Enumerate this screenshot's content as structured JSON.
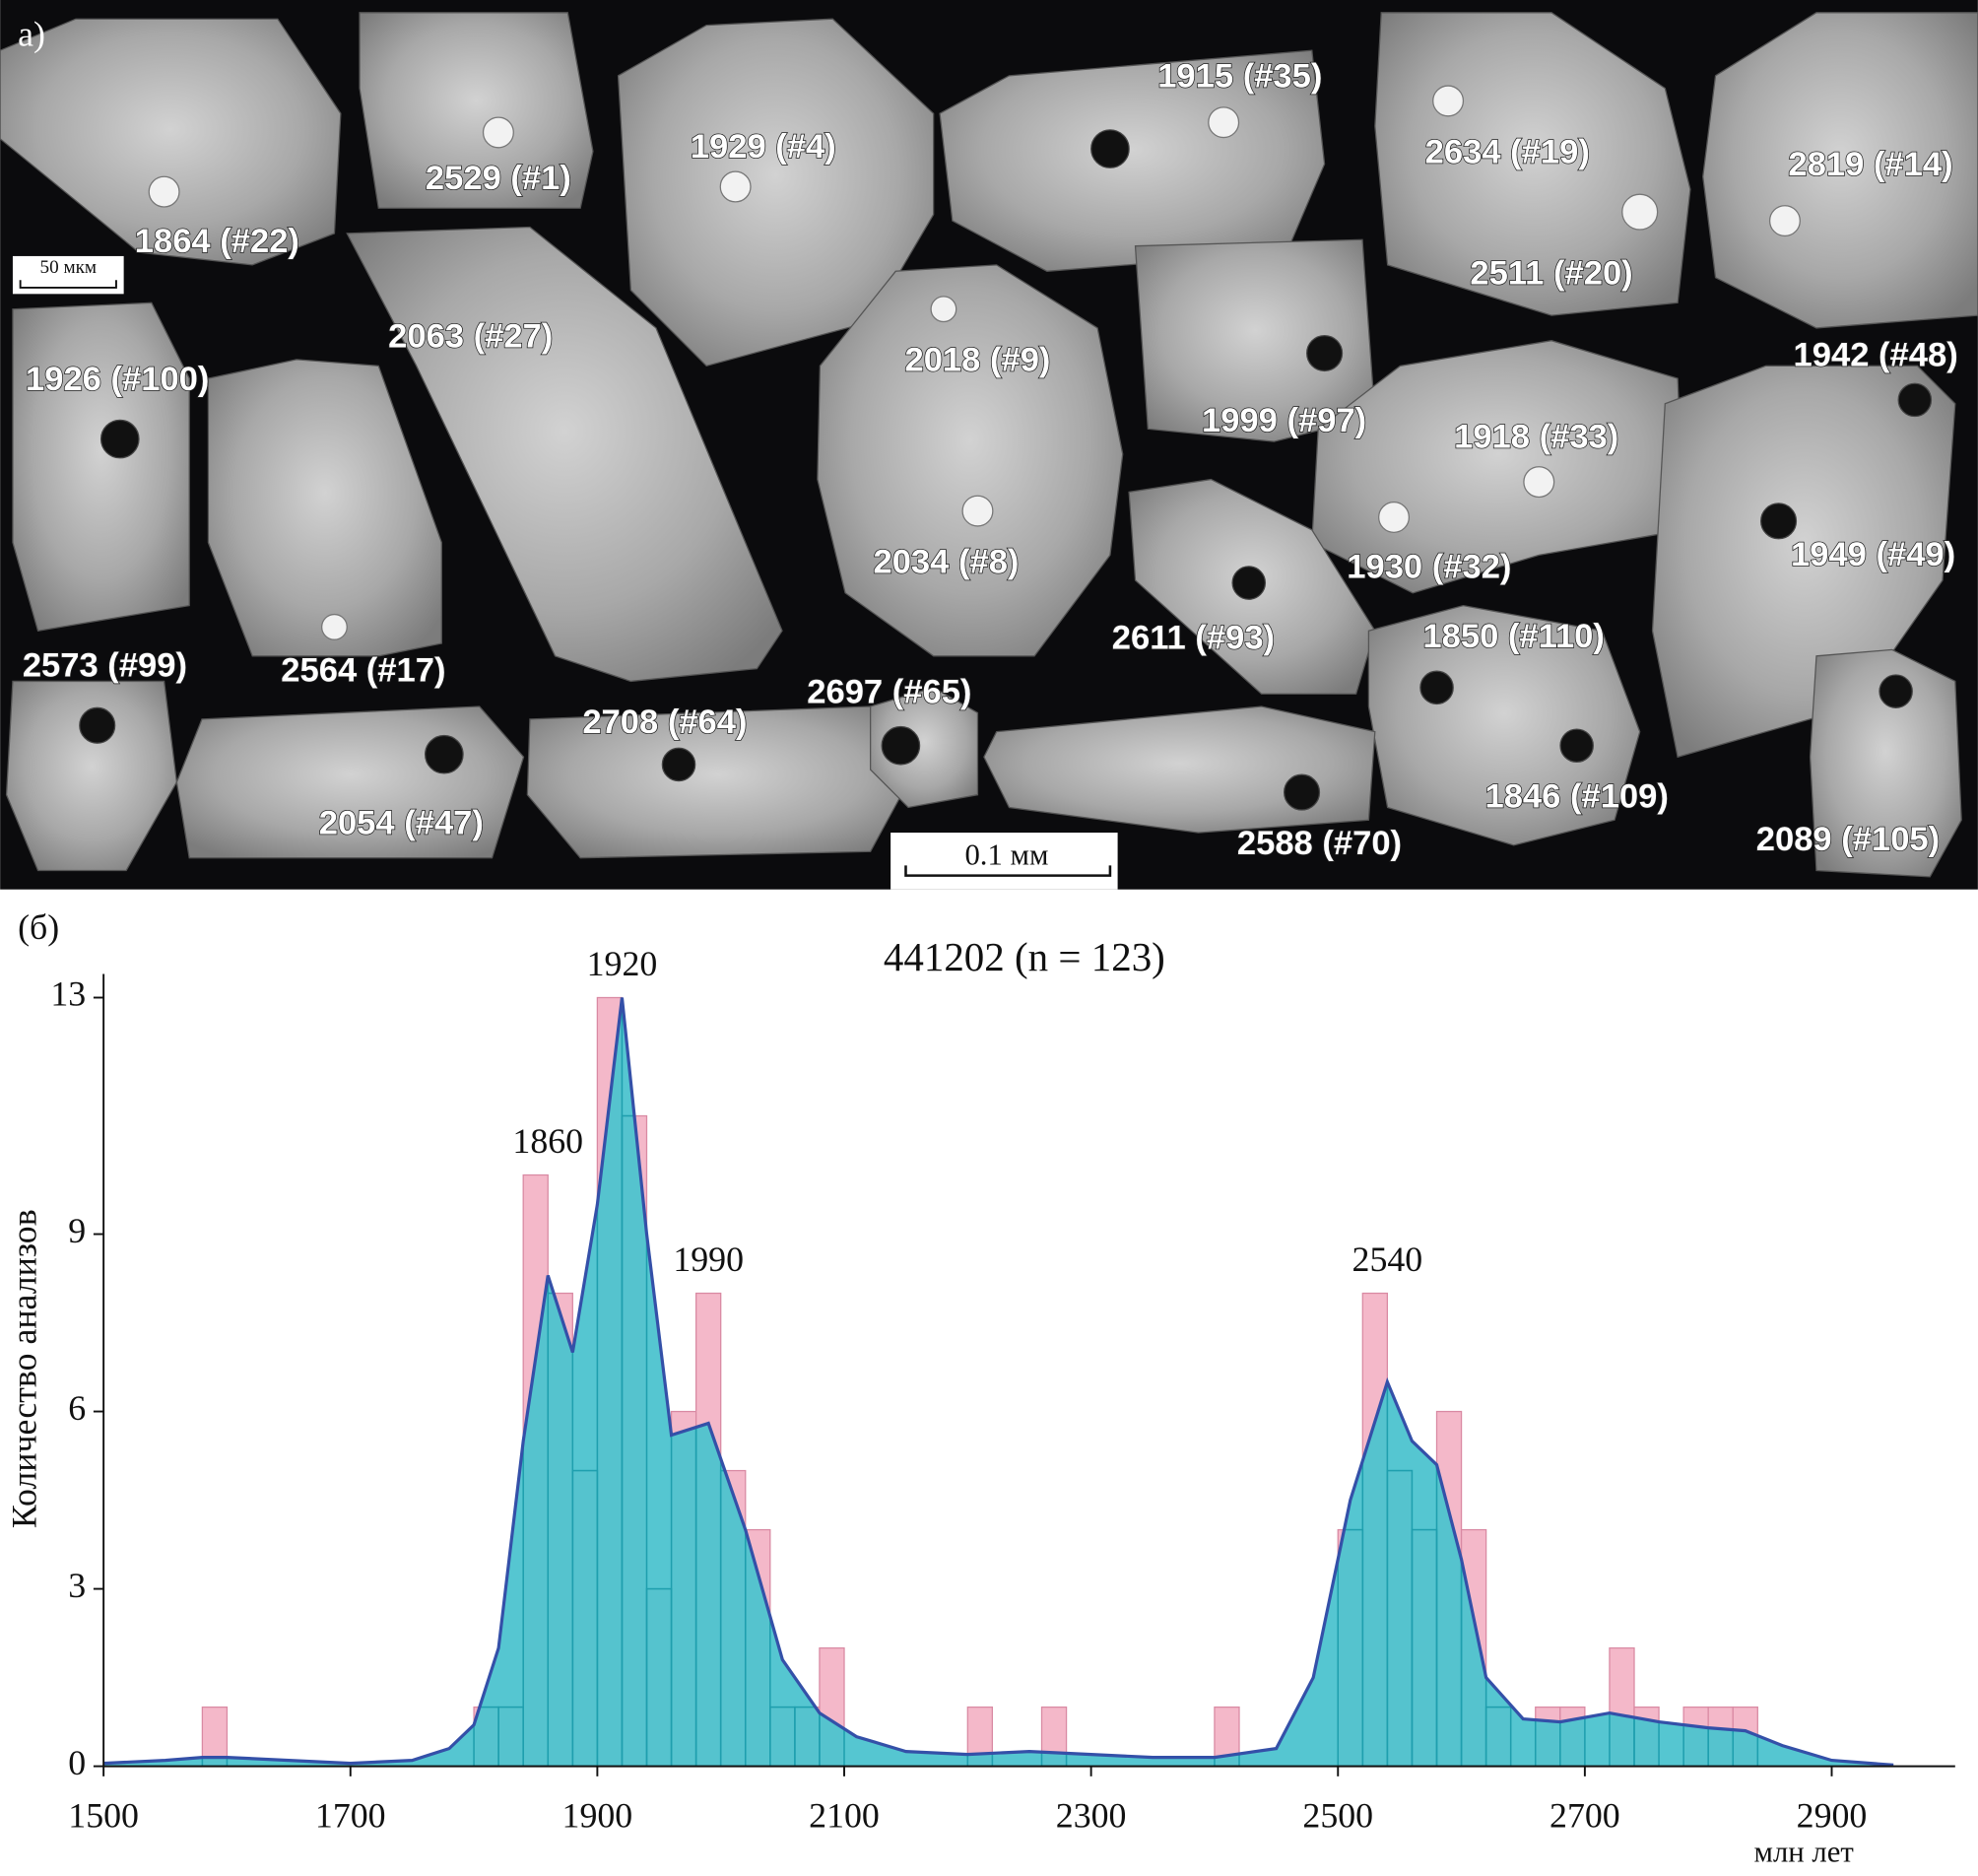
{
  "image_panel": {
    "label": "а)",
    "scale_bars": [
      "50 мкм",
      "0.1 мм"
    ],
    "grain_labels": [
      "2529 (#1)",
      "1864 (#22)",
      "1929 (#4)",
      "1915 (#35)",
      "2634 (#19)",
      "2819 (#14)",
      "2511 (#20)",
      "2063 (#27)",
      "1926 (#100)",
      "2018 (#9)",
      "1999 (#97)",
      "1942 (#48)",
      "1918 (#33)",
      "2034 (#8)",
      "1930 (#32)",
      "1949 (#49)",
      "2611 (#93)",
      "1850 (#110)",
      "2573 (#99)",
      "2564 (#17)",
      "2697 (#65)",
      "2708 (#64)",
      "1846 (#109)",
      "2054 (#47)",
      "2588 (#70)",
      "2089 (#105)"
    ]
  },
  "chart_data": {
    "type": "histogram",
    "panel_label": "(б)",
    "title": "441202 (n = 123)",
    "y_label": "Количество анализов",
    "x_label": "млн лет",
    "bins": [
      1580,
      1600,
      1620,
      1640,
      1660,
      1680,
      1700,
      1720,
      1740,
      1760,
      1780,
      1800,
      1820,
      1840,
      1860,
      1880,
      1900,
      1920,
      1940,
      1960,
      1980,
      2000,
      2020,
      2040,
      2060,
      2080,
      2100,
      2120,
      2140,
      2160,
      2180,
      2200,
      2220,
      2240,
      2260,
      2280,
      2300,
      2320,
      2340,
      2360,
      2380,
      2400,
      2420,
      2440,
      2460,
      2480,
      2500,
      2520,
      2540,
      2560,
      2580,
      2600,
      2620,
      2640,
      2660,
      2680,
      2700,
      2720,
      2740,
      2760,
      2780,
      2800,
      2820,
      2840
    ],
    "counts": [
      1,
      0,
      0,
      0,
      0,
      0,
      0,
      0,
      0,
      0,
      0,
      1,
      1,
      10,
      8,
      5,
      13,
      11,
      3,
      6,
      8,
      5,
      4,
      1,
      1,
      2,
      0,
      0,
      0,
      0,
      0,
      1,
      0,
      0,
      1,
      0,
      0,
      0,
      0,
      0,
      0,
      1,
      0,
      0,
      0,
      0,
      4,
      8,
      5,
      4,
      6,
      4,
      1,
      0,
      1,
      1,
      0,
      2,
      1,
      0,
      1,
      1,
      1
    ],
    "color": "#f4b8c9",
    "density": {
      "x": [
        1500,
        1550,
        1580,
        1600,
        1650,
        1700,
        1750,
        1780,
        1800,
        1820,
        1840,
        1860,
        1880,
        1900,
        1920,
        1940,
        1960,
        1990,
        2020,
        2050,
        2080,
        2110,
        2150,
        2200,
        2250,
        2300,
        2350,
        2400,
        2450,
        2480,
        2510,
        2540,
        2560,
        2580,
        2600,
        2620,
        2650,
        2680,
        2720,
        2760,
        2800,
        2830,
        2860,
        2900,
        2950
      ],
      "values": [
        0.05,
        0.1,
        0.15,
        0.15,
        0.1,
        0.05,
        0.1,
        0.3,
        0.7,
        2.0,
        5.5,
        8.3,
        7.0,
        9.5,
        13.0,
        9.0,
        5.6,
        5.8,
        4.0,
        1.8,
        0.9,
        0.5,
        0.25,
        0.2,
        0.25,
        0.2,
        0.15,
        0.15,
        0.3,
        1.5,
        4.5,
        6.5,
        5.5,
        5.1,
        3.5,
        1.5,
        0.8,
        0.75,
        0.9,
        0.75,
        0.65,
        0.6,
        0.35,
        0.1,
        0.02
      ],
      "color": "#4cc3cf",
      "line_color": "#3450a8"
    },
    "peak_labels": [
      1860,
      1920,
      1990,
      2540
    ],
    "xlim": [
      1500,
      3000
    ],
    "ylim": [
      0,
      13.4
    ],
    "xticks": [
      1500,
      1700,
      1900,
      2100,
      2300,
      2500,
      2700,
      2900
    ],
    "yticks": [
      0,
      3,
      6,
      9,
      13
    ]
  }
}
